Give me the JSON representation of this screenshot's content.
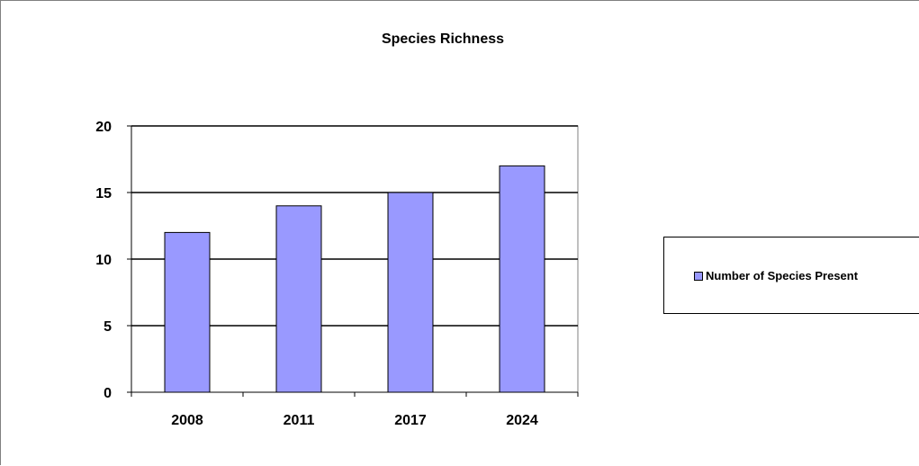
{
  "chart_data": {
    "type": "bar",
    "title": "Species Richness",
    "categories": [
      "2008",
      "2011",
      "2017",
      "2024"
    ],
    "series": [
      {
        "name": "Number of Species Present",
        "values": [
          12,
          14,
          15,
          17
        ],
        "color": "#9999ff"
      }
    ],
    "xlabel": "",
    "ylabel": "",
    "ylim": [
      0,
      20
    ],
    "yticks": [
      "0",
      "5",
      "10",
      "15",
      "20"
    ],
    "grid": true,
    "legend_position": "right"
  }
}
